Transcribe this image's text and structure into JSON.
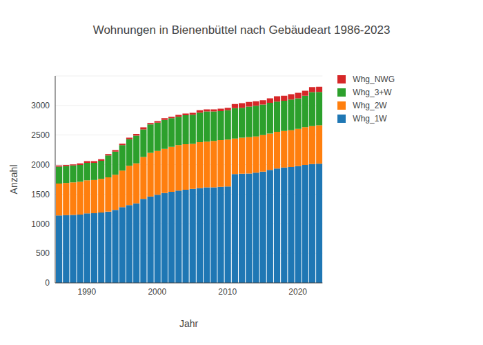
{
  "chart_data": {
    "type": "bar",
    "title": "Wohnungen in Bienenbüttel nach Gebäudeart 1986-2023",
    "x_label": "Jahr",
    "y_label": "Anzahl",
    "stacked": true,
    "grid": true,
    "legend": "top right",
    "x": [
      1986,
      1987,
      1988,
      1989,
      1990,
      1991,
      1992,
      1993,
      1994,
      1995,
      1996,
      1997,
      1998,
      1999,
      2000,
      2001,
      2002,
      2003,
      2004,
      2005,
      2006,
      2007,
      2008,
      2009,
      2010,
      2011,
      2012,
      2013,
      2014,
      2015,
      2016,
      2017,
      2018,
      2019,
      2020,
      2021,
      2022,
      2023
    ],
    "xlim": [
      1985.5,
      2023.5
    ],
    "xticks": [
      1990,
      2000,
      2010,
      2020
    ],
    "ylim": [
      0,
      3500
    ],
    "yticks": [
      0,
      500,
      1000,
      1500,
      2000,
      2500,
      3000
    ],
    "series": [
      {
        "name": "Whg_1W",
        "color": "#1f77b4",
        "values": [
          1140,
          1145,
          1150,
          1155,
          1175,
          1178,
          1190,
          1205,
          1235,
          1280,
          1315,
          1345,
          1420,
          1460,
          1490,
          1520,
          1540,
          1560,
          1575,
          1590,
          1605,
          1615,
          1615,
          1625,
          1630,
          1840,
          1845,
          1850,
          1865,
          1880,
          1910,
          1935,
          1950,
          1960,
          1975,
          1995,
          2010,
          2015
        ]
      },
      {
        "name": "Whg_2W",
        "color": "#ff7f0e",
        "values": [
          540,
          545,
          550,
          555,
          560,
          562,
          570,
          580,
          595,
          620,
          665,
          675,
          710,
          740,
          740,
          745,
          760,
          770,
          770,
          760,
          775,
          775,
          785,
          790,
          795,
          600,
          610,
          615,
          610,
          620,
          615,
          620,
          620,
          620,
          630,
          640,
          640,
          650
        ]
      },
      {
        "name": "Whg_3+W",
        "color": "#2ca02c",
        "values": [
          285,
          285,
          285,
          285,
          295,
          290,
          305,
          370,
          390,
          430,
          450,
          470,
          465,
          480,
          480,
          490,
          485,
          480,
          490,
          495,
          500,
          510,
          500,
          490,
          495,
          515,
          505,
          515,
          520,
          515,
          520,
          510,
          510,
          520,
          515,
          530,
          575,
          565
        ]
      },
      {
        "name": "Whg_NWG",
        "color": "#d62728",
        "values": [
          20,
          20,
          20,
          25,
          30,
          30,
          25,
          25,
          25,
          25,
          25,
          30,
          35,
          25,
          25,
          30,
          25,
          30,
          30,
          30,
          40,
          35,
          35,
          40,
          40,
          70,
          80,
          80,
          75,
          75,
          75,
          90,
          85,
          90,
          95,
          85,
          85,
          85
        ]
      }
    ]
  }
}
